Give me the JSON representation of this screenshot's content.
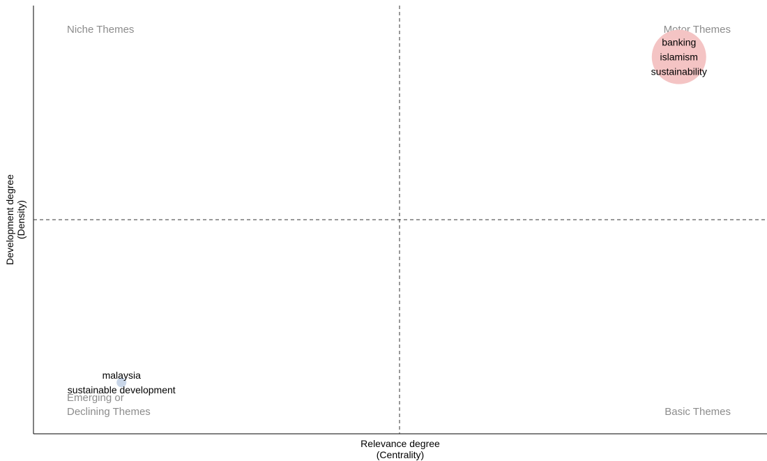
{
  "chart_data": {
    "type": "scatter",
    "title": "",
    "xlabel": "Relevance degree",
    "xlabel_sub": "(Centrality)",
    "ylabel": "Development degree",
    "ylabel_sub": "(Density)",
    "grid": false,
    "quadrant_labels": {
      "top_left": [
        "Niche Themes"
      ],
      "top_right": [
        "Motor Themes"
      ],
      "bottom_left": [
        "Emerging or",
        "Declining Themes"
      ],
      "bottom_right": [
        "Basic Themes"
      ]
    },
    "clusters": [
      {
        "labels": [
          "banking",
          "islamism",
          "sustainability"
        ],
        "x": 0.88,
        "y": 0.88,
        "size": 3,
        "color": "#f4c4c4"
      },
      {
        "labels": [
          "malaysia",
          "sustainable development"
        ],
        "x": 0.12,
        "y": 0.12,
        "size": 1,
        "color": "#c9d6e8"
      }
    ]
  }
}
